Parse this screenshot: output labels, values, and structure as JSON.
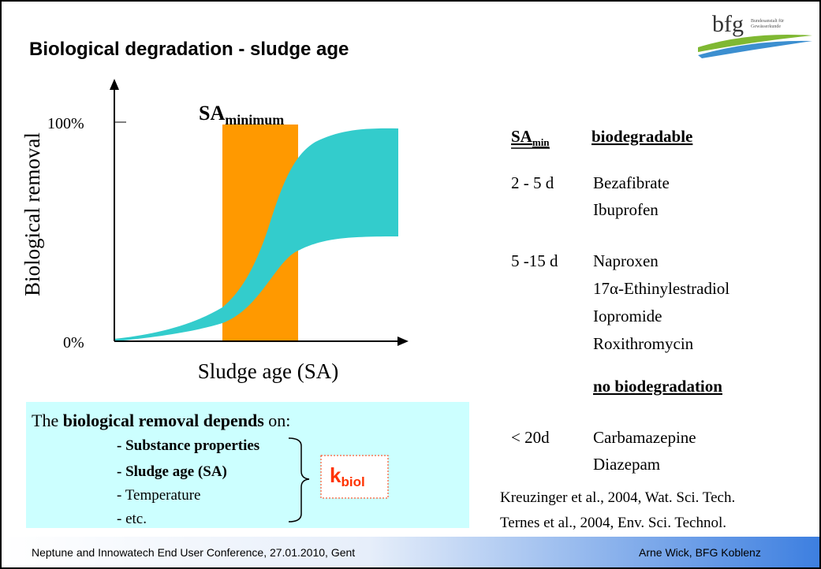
{
  "header": {
    "title": "Biological degradation - sludge age",
    "logo": {
      "name": "bfg",
      "line1": "Bundesanstalt für",
      "line2": "Gewässerkunde"
    }
  },
  "diagram": {
    "marker": {
      "main": "SA",
      "sub": "minimum"
    },
    "y_label": "Biological removal",
    "y_top": "100%",
    "y_bottom": "0%",
    "x_label": "Sludge age (SA)"
  },
  "box": {
    "intro": [
      "The ",
      "biological removal depends",
      " on:"
    ],
    "items": [
      "- Substance properties",
      "- Sludge age (SA)",
      "- Temperature",
      "- etc."
    ],
    "k": {
      "main": "k",
      "sub": "biol"
    }
  },
  "table": {
    "header": {
      "col1_main": "SA",
      "col1_sub": "min",
      "col2": "biodegradable"
    },
    "groups": [
      {
        "range": "2 - 5 d",
        "substances": [
          "Bezafibrate",
          "Ibuprofen"
        ]
      },
      {
        "range": "5 -15 d",
        "substances": [
          "Naproxen",
          "17α-Ethinylestradiol",
          "Iopromide",
          "Roxithromycin"
        ]
      }
    ],
    "none_header": "no biodegradation",
    "none_group": {
      "range": "< 20d",
      "substances": [
        "Carbamazepine",
        "Diazepam"
      ]
    }
  },
  "references": [
    "Kreuzinger et al., 2004, Wat. Sci. Tech.",
    "Ternes et al., 2004, Env. Sci. Technol."
  ],
  "footer": {
    "left": "Neptune and Innowatech End User Conference, 27.01.2010, Gent",
    "right": "Arne Wick, BFG Koblenz"
  }
}
